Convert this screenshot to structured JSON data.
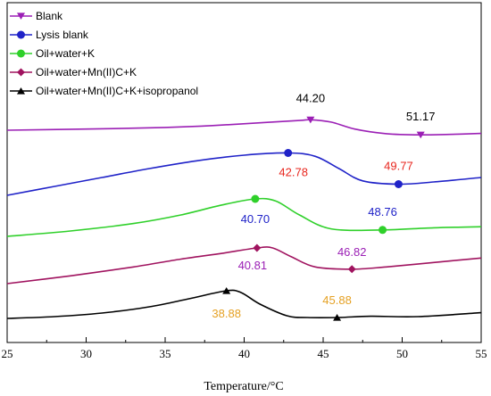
{
  "chart_data": {
    "type": "line",
    "xlabel": "Temperature/°C",
    "ylabel": "",
    "xlim": [
      25,
      55
    ],
    "x_ticks": [
      25,
      30,
      35,
      40,
      45,
      50,
      55
    ],
    "grid": false,
    "legend_position": "top-left",
    "series": [
      {
        "name": "Blank",
        "color": "#9b1fb5",
        "marker": "triangle-down",
        "offset_level": 4,
        "x": [
          25,
          30,
          35,
          38,
          41,
          43.5,
          44.2,
          45.5,
          47,
          49,
          51.17,
          53,
          55
        ],
        "y": [
          0.0,
          0.05,
          0.12,
          0.2,
          0.32,
          0.42,
          0.45,
          0.35,
          0.05,
          -0.15,
          -0.2,
          -0.18,
          -0.14
        ],
        "markers": [
          {
            "x": 44.2,
            "y": 0.45,
            "label": "44.20",
            "label_color": "#000000"
          },
          {
            "x": 51.17,
            "y": -0.2,
            "label": "51.17",
            "label_color": "#000000"
          }
        ]
      },
      {
        "name": "Lysis blank",
        "color": "#1f22c8",
        "marker": "circle",
        "offset_level": 3,
        "x": [
          25,
          28,
          31,
          34,
          37,
          40,
          42.78,
          44.5,
          46,
          47.5,
          49.77,
          52,
          55
        ],
        "y": [
          0.0,
          0.4,
          0.8,
          1.2,
          1.55,
          1.8,
          1.9,
          1.75,
          1.2,
          0.65,
          0.5,
          0.6,
          0.8
        ],
        "markers": [
          {
            "x": 42.78,
            "y": 1.9,
            "label": "42.78",
            "label_color": "#e8261e"
          },
          {
            "x": 49.77,
            "y": 0.5,
            "label": "49.77",
            "label_color": "#e8261e"
          }
        ]
      },
      {
        "name": "Oil+water+K",
        "color": "#2fd02a",
        "marker": "circle",
        "offset_level": 2,
        "x": [
          25,
          29,
          33,
          36,
          38.5,
          40.7,
          42,
          43.5,
          45.5,
          48.76,
          52,
          55
        ],
        "y": [
          0.0,
          0.25,
          0.6,
          1.0,
          1.45,
          1.75,
          1.65,
          1.0,
          0.35,
          0.3,
          0.4,
          0.45
        ],
        "markers": [
          {
            "x": 40.7,
            "y": 1.75,
            "label": "40.70",
            "label_color": "#1f22c8"
          },
          {
            "x": 48.76,
            "y": 0.3,
            "label": "48.76",
            "label_color": "#1f22c8"
          }
        ]
      },
      {
        "name": "Oil+water+Mn(II)C+K",
        "color": "#a0135f",
        "marker": "diamond",
        "offset_level": 1,
        "x": [
          25,
          29,
          33,
          36,
          38.5,
          40.81,
          41.8,
          43,
          44.5,
          46.82,
          49,
          52,
          55
        ],
        "y": [
          0.0,
          0.35,
          0.75,
          1.1,
          1.35,
          1.6,
          1.6,
          1.2,
          0.75,
          0.65,
          0.75,
          0.95,
          1.15
        ],
        "markers": [
          {
            "x": 40.81,
            "y": 1.6,
            "label": "40.81",
            "label_color": "#9b1fb5"
          },
          {
            "x": 46.82,
            "y": 0.65,
            "label": "46.82",
            "label_color": "#9b1fb5"
          }
        ]
      },
      {
        "name": "Oil+water+Mn(II)C+K+isopropanol",
        "color": "#000000",
        "marker": "triangle-up",
        "offset_level": 0,
        "x": [
          25,
          28,
          31,
          34,
          36.5,
          38.88,
          39.8,
          41,
          42.7,
          44,
          45.88,
          48,
          51,
          55
        ],
        "y": [
          0.0,
          0.1,
          0.3,
          0.65,
          1.1,
          1.55,
          1.45,
          0.8,
          0.15,
          0.05,
          0.05,
          0.12,
          0.1,
          0.32
        ],
        "markers": [
          {
            "x": 38.88,
            "y": 1.55,
            "label": "38.88",
            "label_color": "#e5a124"
          },
          {
            "x": 45.88,
            "y": 0.05,
            "label": "45.88",
            "label_color": "#e5a124"
          }
        ]
      }
    ]
  }
}
